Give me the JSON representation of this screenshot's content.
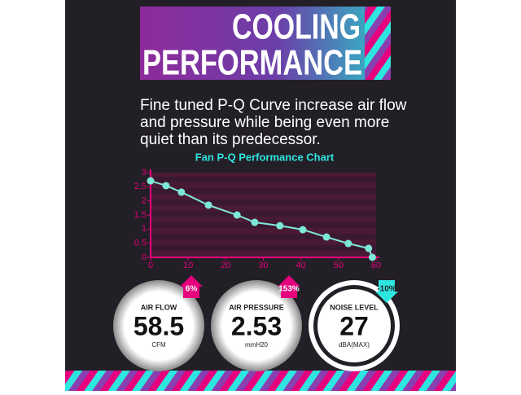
{
  "banner": {
    "line1": "COOLING",
    "line2": "PERFORMANCE"
  },
  "description": [
    "Fine tuned P-Q Curve increase air flow",
    "and pressure while being even more",
    "quiet than its predecessor."
  ],
  "chart_data": {
    "type": "line",
    "title": "Fan P-Q Performance Chart",
    "x": [
      0,
      4.1,
      8.2,
      15.4,
      23,
      27.7,
      34.4,
      40.5,
      46.8,
      52.6,
      58,
      59
    ],
    "series": [
      {
        "name": "P-Q Curve",
        "color": "#7ee8d8",
        "values": [
          2.71,
          2.54,
          2.31,
          1.85,
          1.5,
          1.24,
          1.12,
          0.98,
          0.72,
          0.49,
          0.32,
          0
        ]
      }
    ],
    "xlim": [
      0,
      60
    ],
    "xticks": [
      0,
      10,
      20,
      30,
      40,
      50,
      60
    ],
    "ylim": [
      0,
      3
    ],
    "yticks": [
      0,
      0.5,
      1,
      1.5,
      2,
      2.5,
      3
    ],
    "axis_color": "#e6007e"
  },
  "gauges": [
    {
      "label": "AIR FLOW",
      "value": "58.5",
      "unit": "CFM",
      "change": "6%"
    },
    {
      "label": "AIR PRESSURE",
      "value": "2.53",
      "unit": "mmH20",
      "change": "153%"
    },
    {
      "label": "NOISE LEVEL",
      "value": "27",
      "unit": "dBA(MAX)",
      "change": "-10%"
    }
  ]
}
